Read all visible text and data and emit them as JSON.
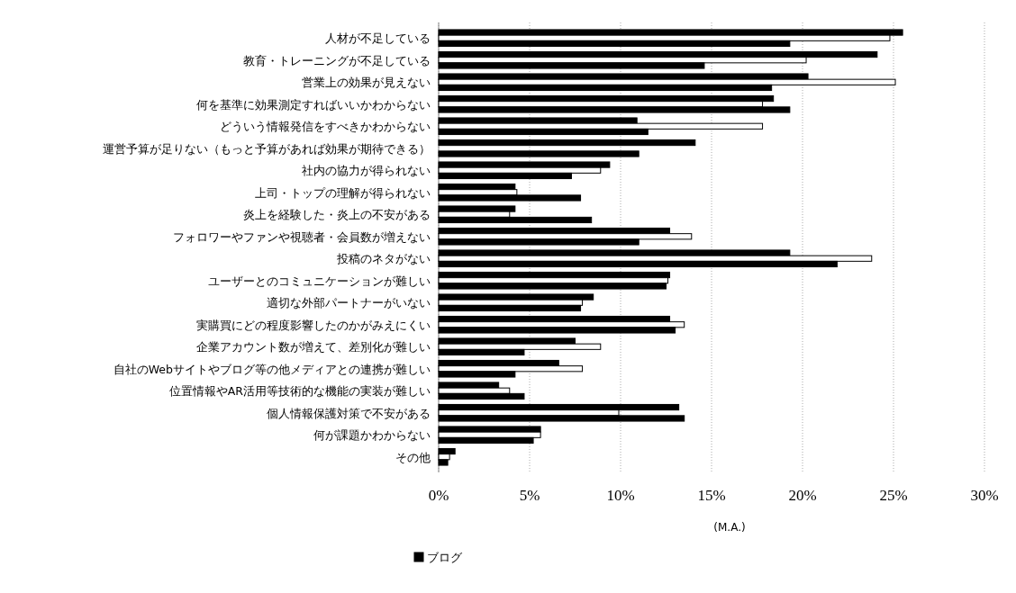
{
  "chart_data": {
    "type": "bar",
    "orientation": "horizontal",
    "categories": [
      "人材が不足している",
      "教育・トレーニングが不足している",
      "営業上の効果が見えない",
      "何を基準に効果測定すればいいかわからない",
      "どういう情報発信をすべきかわからない",
      "運営予算が足りない（もっと予算があれば効果が期待できる）",
      "社内の協力が得られない",
      "上司・トップの理解が得られない",
      "炎上を経験した・炎上の不安がある",
      "フォロワーやファンや視聴者・会員数が増えない",
      "投稿のネタがない",
      "ユーザーとのコミュニケーションが難しい",
      "適切な外部パートナーがいない",
      "実購買にどの程度影響したのかがみえにくい",
      "企業アカウント数が増えて、差別化が難しい",
      "自社のWebサイトやブログ等の他メディアとの連携が難しい",
      "位置情報やAR活用等技術的な機能の実装が難しい",
      "個人情報保護対策で不安がある",
      "何が課題かわからない",
      "その他"
    ],
    "series": [
      {
        "color": "#000000",
        "values": [
          25.5,
          24.1,
          20.3,
          18.4,
          10.9,
          14.1,
          9.4,
          4.2,
          4.2,
          12.7,
          19.3,
          12.7,
          8.5,
          12.7,
          7.5,
          6.6,
          3.3,
          13.2,
          5.6,
          0.9
        ]
      },
      {
        "color": "#ffffff",
        "values": [
          24.8,
          20.2,
          25.1,
          17.8,
          17.8,
          null,
          8.9,
          4.3,
          3.9,
          13.9,
          23.8,
          12.6,
          7.9,
          13.5,
          8.9,
          7.9,
          3.9,
          9.9,
          5.6,
          0.6
        ]
      },
      {
        "name": "ブログ",
        "color": "#000000",
        "values": [
          19.3,
          14.6,
          18.3,
          19.3,
          11.5,
          11.0,
          7.3,
          7.8,
          8.4,
          11.0,
          21.9,
          12.5,
          7.8,
          13.0,
          4.7,
          4.2,
          4.7,
          13.5,
          5.2,
          0.5
        ]
      }
    ],
    "xlim": [
      0,
      30
    ],
    "xticks": [
      {
        "value": 0,
        "label": "0%"
      },
      {
        "value": 5,
        "label": "5%"
      },
      {
        "value": 10,
        "label": "10%"
      },
      {
        "value": 15,
        "label": "15%"
      },
      {
        "value": 20,
        "label": "20%"
      },
      {
        "value": 25,
        "label": "25%"
      },
      {
        "value": 30,
        "label": "30%"
      }
    ],
    "grid": "x",
    "legend": "bottom",
    "annotations": [
      "(M.A.)"
    ]
  }
}
